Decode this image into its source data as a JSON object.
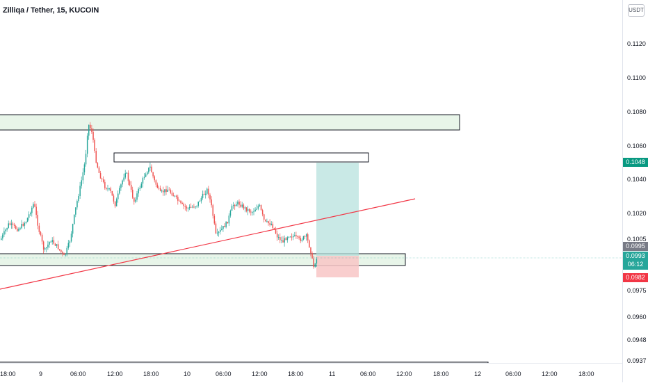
{
  "header": {
    "symbol_title": "Zilliqa / Tether, 15, KUCOIN",
    "currency": "USDT"
  },
  "price_axis": {
    "ticks": [
      "0.1120",
      "0.1100",
      "0.1080",
      "0.1060",
      "0.1040",
      "0.1020",
      "0.1005",
      "0.0975",
      "0.0960",
      "0.0948",
      "0.0937"
    ]
  },
  "time_axis": {
    "ticks": [
      "18:00",
      "9",
      "06:00",
      "12:00",
      "18:00",
      "10",
      "06:00",
      "12:00",
      "18:00",
      "11",
      "06:00",
      "12:00",
      "18:00",
      "12",
      "06:00",
      "12:00",
      "18:00"
    ]
  },
  "price_tags": {
    "target": {
      "value": "0.1048",
      "color": "#089981"
    },
    "gray": {
      "value": "0.0995",
      "color": "#787b86"
    },
    "last": {
      "value": "0.0993",
      "countdown": "06:12",
      "color": "#26a69a"
    },
    "stop": {
      "value": "0.0982",
      "color": "#f23645"
    }
  },
  "colors": {
    "up": "#26a69a",
    "down": "#ef5350",
    "zone_fill": "#e8f5e9",
    "trendline": "#f23645",
    "target_fill": "#b2dfdb",
    "stop_fill": "#f8c5c5"
  }
}
